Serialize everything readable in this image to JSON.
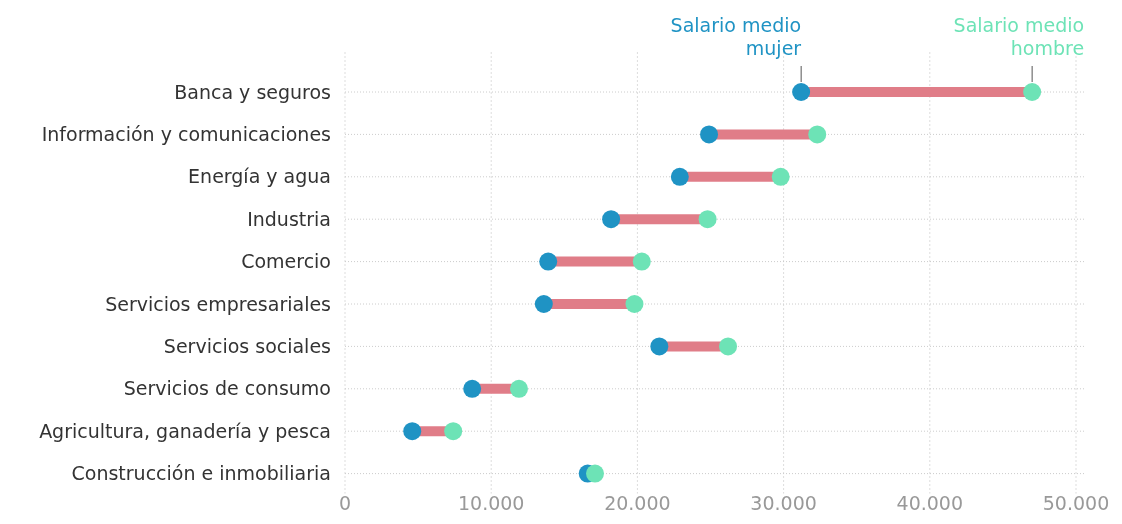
{
  "chart_data": {
    "type": "scatter",
    "orientation": "horizontal",
    "categories": [
      "Banca y seguros",
      "Información y comunicaciones",
      "Energía y agua",
      "Industria",
      "Comercio",
      "Servicios empresariales",
      "Servicios sociales",
      "Servicios de consumo",
      "Agricultura, ganadería y pesca",
      "Construcción e inmobiliaria"
    ],
    "series": [
      {
        "name": "Salario medio mujer",
        "color": "#1f93c4",
        "values": [
          31200,
          24900,
          22900,
          18200,
          13900,
          13600,
          21500,
          8700,
          4600,
          16600
        ]
      },
      {
        "name": "Salario medio hombre",
        "color": "#6de3b6",
        "values": [
          47000,
          32300,
          29800,
          24800,
          20300,
          19800,
          26200,
          11900,
          7400,
          17100
        ]
      }
    ],
    "xlim": [
      0,
      50000
    ],
    "xticks": [
      {
        "value": 0,
        "label": "0"
      },
      {
        "value": 10000,
        "label": "10.000"
      },
      {
        "value": 20000,
        "label": "20.000"
      },
      {
        "value": 30000,
        "label": "30.000"
      },
      {
        "value": 40000,
        "label": "40.000"
      },
      {
        "value": 50000,
        "label": "50.000"
      }
    ],
    "grid": true,
    "marker": "circle"
  }
}
